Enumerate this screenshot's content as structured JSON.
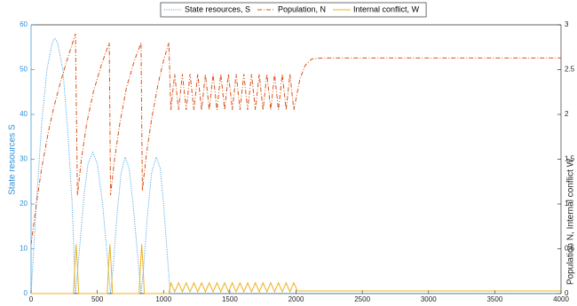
{
  "chart_data": {
    "type": "line",
    "legend_position": "top",
    "xlim": [
      0,
      4000
    ],
    "xticks": [
      0,
      500,
      1000,
      1500,
      2000,
      2500,
      3000,
      3500,
      4000
    ],
    "ylim": [
      0,
      60
    ],
    "yticks": [
      0,
      10,
      20,
      30,
      40,
      50,
      60
    ],
    "y2lim": [
      0,
      3
    ],
    "y2ticks": [
      0,
      0.5,
      1,
      1.5,
      2,
      2.5,
      3
    ],
    "ylabel": "State resources S",
    "y2label": "Population N, Internal conflict W",
    "series": [
      {
        "name": "State resources, S",
        "color": "#3a9bdc",
        "linestyle": "dotted",
        "x": [
          0,
          40,
          80,
          120,
          160,
          180,
          200,
          240,
          280,
          310,
          335,
          360,
          400,
          430,
          465,
          500,
          540,
          570,
          600,
          620,
          650,
          680,
          710,
          740,
          770,
          800,
          830,
          850,
          880,
          910,
          945,
          975,
          1000,
          1025,
          1050,
          4000
        ],
        "values": [
          0,
          20,
          38,
          50,
          56,
          57,
          56,
          50,
          35,
          20,
          0,
          8,
          22,
          29,
          31.5,
          29,
          20,
          10,
          0,
          6,
          18,
          27,
          30.5,
          28,
          20,
          10,
          0,
          6,
          18,
          27,
          30.5,
          28,
          20,
          10,
          0,
          0
        ]
      },
      {
        "name": "Population, N",
        "color": "#d95319",
        "linestyle": "dashdot",
        "axis": "y2",
        "x": [
          0,
          40,
          80,
          130,
          170,
          220,
          270,
          335,
          350,
          380,
          420,
          470,
          530,
          590,
          600,
          630,
          670,
          720,
          780,
          830,
          840,
          870,
          910,
          960,
          1000,
          1040,
          1055,
          1084,
          1113,
          1142,
          1171,
          1200,
          1229,
          1258,
          1287,
          1316,
          1345,
          1374,
          1403,
          1432,
          1461,
          1490,
          1519,
          1548,
          1577,
          1606,
          1635,
          1664,
          1693,
          1722,
          1751,
          1780,
          1809,
          1838,
          1867,
          1896,
          1925,
          1954,
          1983,
          2030,
          2070,
          2120,
          2200,
          4000
        ],
        "values": [
          0.55,
          1.0,
          1.4,
          1.8,
          2.07,
          2.35,
          2.6,
          2.9,
          1.1,
          1.5,
          1.9,
          2.25,
          2.55,
          2.8,
          1.1,
          1.5,
          1.9,
          2.3,
          2.6,
          2.8,
          1.15,
          1.55,
          1.95,
          2.35,
          2.6,
          2.8,
          2.05,
          2.45,
          2.05,
          2.45,
          2.05,
          2.45,
          2.05,
          2.45,
          2.05,
          2.45,
          2.05,
          2.45,
          2.05,
          2.45,
          2.05,
          2.45,
          2.05,
          2.45,
          2.05,
          2.45,
          2.05,
          2.45,
          2.05,
          2.45,
          2.05,
          2.45,
          2.05,
          2.45,
          2.05,
          2.45,
          2.05,
          2.45,
          2.05,
          2.4,
          2.55,
          2.62,
          2.63,
          2.63
        ]
      },
      {
        "name": "Internal conflict, W",
        "color": "#edb120",
        "linestyle": "solid",
        "axis": "y2",
        "x": [
          0,
          320,
          330,
          340,
          350,
          360,
          575,
          585,
          595,
          605,
          615,
          815,
          825,
          835,
          845,
          855,
          1040,
          1055,
          1084,
          1113,
          1142,
          1171,
          1200,
          1229,
          1258,
          1287,
          1316,
          1345,
          1374,
          1403,
          1432,
          1461,
          1490,
          1519,
          1548,
          1577,
          1606,
          1635,
          1664,
          1693,
          1722,
          1751,
          1780,
          1809,
          1838,
          1867,
          1896,
          1925,
          1954,
          1983,
          2010,
          4000
        ],
        "values": [
          0,
          0,
          0.3,
          0.55,
          0.3,
          0,
          0,
          0.3,
          0.55,
          0.3,
          0,
          0,
          0.3,
          0.55,
          0.3,
          0,
          0,
          0.12,
          0.02,
          0.12,
          0.02,
          0.12,
          0.02,
          0.12,
          0.02,
          0.12,
          0.02,
          0.12,
          0.02,
          0.12,
          0.02,
          0.12,
          0.02,
          0.12,
          0.02,
          0.12,
          0.02,
          0.12,
          0.02,
          0.12,
          0.02,
          0.12,
          0.02,
          0.12,
          0.02,
          0.12,
          0.02,
          0.12,
          0.02,
          0.12,
          0.03,
          0.03
        ]
      }
    ]
  }
}
